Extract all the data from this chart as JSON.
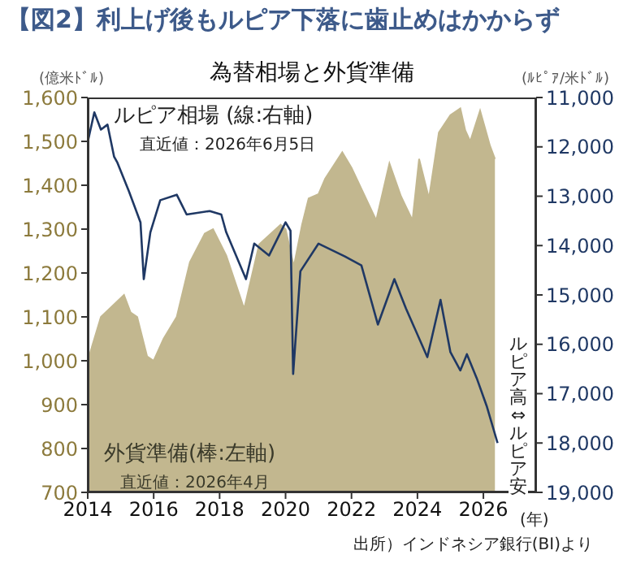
{
  "chart_data": {
    "type": "area",
    "title": "【図2】利上げ後もルピア下落に歯止めはかからず",
    "subtitle": "為替相場と外貨準備",
    "ylabel": "(億米ﾄﾞﾙ)",
    "y2label": "(ﾙﾋﾟｱ/米ﾄﾞﾙ)",
    "series": [
      {
        "color": "#c2b78f",
        "axis": "y",
        "x": [
          2014.0,
          2014.4,
          2015.1,
          2015.3,
          2015.5,
          2015.8,
          2016.0,
          2016.3,
          2016.7,
          2017.1,
          2017.55,
          2017.8,
          2018.2,
          2018.7,
          2018.75,
          2019.2,
          2019.85,
          2020.0,
          2020.25,
          2020.5,
          2020.7,
          2021.0,
          2021.2,
          2021.72,
          2022.0,
          2022.75,
          2023.15,
          2023.5,
          2023.85,
          2024.05,
          2024.35,
          2024.65,
          2025.0,
          2025.3,
          2025.45,
          2025.6,
          2025.9,
          2026.05,
          2026.2,
          2026.35
        ],
        "values": [
          1000,
          1100,
          1150,
          1110,
          1100,
          1010,
          1000,
          1050,
          1100,
          1225,
          1290,
          1300,
          1240,
          1128,
          1120,
          1265,
          1310,
          1300,
          1215,
          1310,
          1370,
          1380,
          1415,
          1475,
          1440,
          1320,
          1450,
          1375,
          1320,
          1460,
          1370,
          1520,
          1560,
          1575,
          1525,
          1500,
          1570,
          1530,
          1490,
          1460
        ]
      },
      {
        "type": "line",
        "color": "#1f3864",
        "axis": "y2",
        "x": [
          2014.0,
          2014.2,
          2014.4,
          2014.6,
          2014.8,
          2014.9,
          2015.25,
          2015.6,
          2015.7,
          2015.9,
          2016.2,
          2016.7,
          2017.0,
          2017.7,
          2018.05,
          2018.2,
          2018.8,
          2019.05,
          2019.5,
          2020.0,
          2020.15,
          2020.23,
          2020.45,
          2021.0,
          2021.8,
          2022.3,
          2022.8,
          2023.3,
          2023.65,
          2024.3,
          2024.7,
          2025.0,
          2025.3,
          2025.5,
          2025.8,
          2026.1,
          2026.43
        ],
        "values": [
          11900,
          11300,
          11650,
          11550,
          12200,
          12320,
          12900,
          13530,
          14680,
          13730,
          13080,
          12970,
          13370,
          13300,
          13370,
          13730,
          14680,
          13960,
          14200,
          13530,
          13700,
          16600,
          14520,
          13960,
          14220,
          14400,
          15600,
          14680,
          15270,
          16260,
          15100,
          16160,
          16530,
          16200,
          16690,
          17250,
          18000
        ]
      }
    ],
    "xlim": [
      2014,
      2027.6
    ],
    "xticks": [
      2014,
      2016,
      2018,
      2020,
      2022,
      2024,
      2026
    ],
    "ylim": [
      700,
      1600
    ],
    "yticks": [
      700,
      800,
      900,
      {
        "value": 1000,
        "label": "1,000"
      },
      {
        "value": 1100,
        "label": "1,100"
      },
      {
        "value": 1200,
        "label": "1,200"
      },
      {
        "value": 1300,
        "label": "1,300"
      },
      {
        "value": 1400,
        "label": "1,400"
      },
      {
        "value": 1500,
        "label": "1,500"
      },
      {
        "value": 1600,
        "label": "1,600"
      }
    ],
    "y2lim": [
      19000,
      11000
    ],
    "y2ticks": [
      {
        "value": 11000,
        "label": "11,000"
      },
      {
        "value": 12000,
        "label": "12,000"
      },
      {
        "value": 13000,
        "label": "13,000"
      },
      {
        "value": 14000,
        "label": "14,000"
      },
      {
        "value": 15000,
        "label": "15,000"
      },
      {
        "value": 16000,
        "label": "16,000"
      },
      {
        "value": 17000,
        "label": "17,000"
      },
      {
        "value": 18000,
        "label": "18,000"
      },
      {
        "value": 19000,
        "label": "19,000"
      }
    ],
    "grid": false,
    "legend": false,
    "annotations": [
      "ルピア相場 (線:右軸)",
      "直近値：2026年6月5日",
      "外貨準備(棒:左軸)",
      "直近値：2026年4月",
      "ルピア高⇔ルピア安",
      "(年)",
      "出所）インドネシア銀行(BI)より"
    ]
  }
}
